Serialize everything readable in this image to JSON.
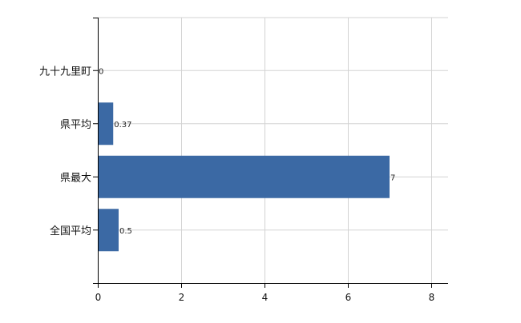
{
  "chart_data": {
    "type": "bar",
    "orientation": "horizontal",
    "categories": [
      "九十九里町",
      "県平均",
      "県最大",
      "全国平均"
    ],
    "values": [
      0,
      0.37,
      7,
      0.5
    ],
    "data_labels": [
      "0",
      "0.37",
      "7",
      "0.5"
    ],
    "title": "",
    "xlabel": "",
    "ylabel": "",
    "xlim": [
      0,
      8.4
    ],
    "xticks": [
      0,
      2,
      4,
      6,
      8
    ],
    "xtick_labels": [
      "0",
      "2",
      "4",
      "6",
      "8"
    ],
    "grid": true,
    "legend": "none",
    "colors": {
      "bar": "#3b69a4",
      "grid": "#d3d3d3",
      "axis": "#000000",
      "text": "#111111"
    }
  }
}
